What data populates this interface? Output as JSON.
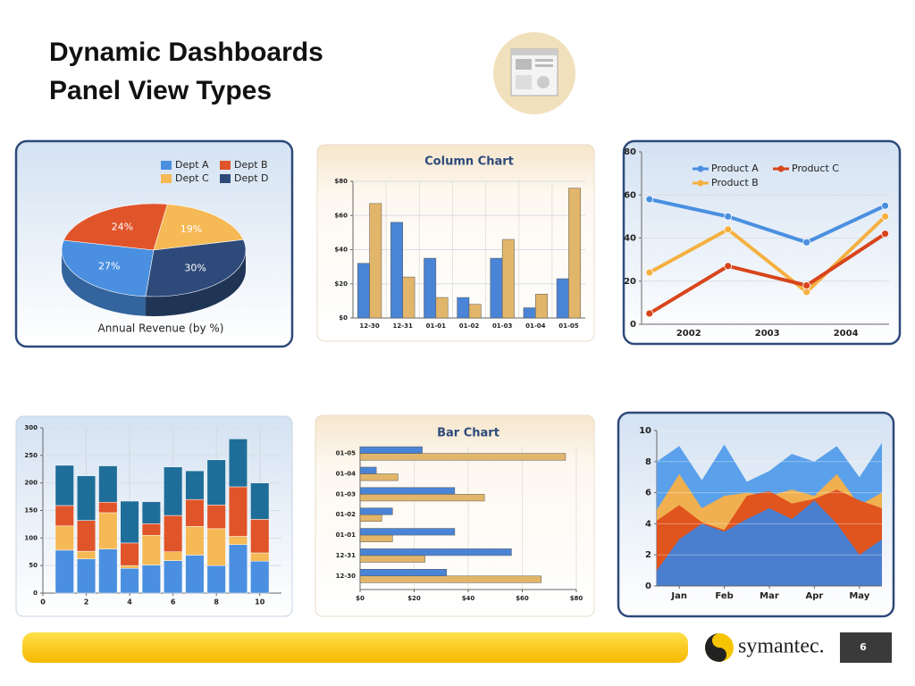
{
  "title_lines": [
    "Dynamic Dashboards",
    "Panel View Types"
  ],
  "footer": {
    "brand": "symantec.",
    "page": "6"
  },
  "chart_data": [
    {
      "type": "pie",
      "title": "Annual Revenue (by %)",
      "categories": [
        "Dept A",
        "Dept B",
        "Dept C",
        "Dept D"
      ],
      "values": [
        27,
        24,
        19,
        30
      ],
      "value_labels": [
        "27%",
        "24%",
        "19%",
        "30%"
      ],
      "colors": [
        "#4a8fe0",
        "#e0542a",
        "#f5b955",
        "#2e4a7a"
      ]
    },
    {
      "type": "bar",
      "title": "Column Chart",
      "categories": [
        "12-30",
        "12-31",
        "01-01",
        "01-02",
        "01-03",
        "01-04",
        "01-05"
      ],
      "series": [
        {
          "color": "#4a84d6",
          "values": [
            32,
            56,
            35,
            12,
            35,
            6,
            23
          ]
        },
        {
          "color": "#e2b66a",
          "values": [
            67,
            24,
            12,
            8,
            46,
            14,
            76
          ]
        }
      ],
      "ylim": [
        0,
        80
      ],
      "yticks": [
        {
          "value": 0,
          "label": "$0"
        },
        {
          "value": 20,
          "label": "$20"
        },
        {
          "value": 40,
          "label": "$40"
        },
        {
          "value": 60,
          "label": "$60"
        },
        {
          "value": 80,
          "label": "$80"
        }
      ],
      "grid": true
    },
    {
      "type": "line",
      "x": [
        2001.5,
        2002.5,
        2003.5,
        2004.5
      ],
      "series": [
        {
          "name": "Product A",
          "color": "#4a8fe0",
          "values": [
            58,
            50,
            38,
            55
          ]
        },
        {
          "name": "Product B",
          "color": "#f5b040",
          "values": [
            24,
            44,
            15,
            50
          ]
        },
        {
          "name": "Product C",
          "color": "#d8441c",
          "values": [
            5,
            27,
            18,
            42
          ]
        }
      ],
      "xlim": [
        2001.4,
        2004.55
      ],
      "xticks": [
        2002,
        2003,
        2004
      ],
      "ylim": [
        0,
        80
      ],
      "yticks": [
        0,
        20,
        40,
        60,
        80
      ],
      "grid": true
    },
    {
      "type": "stacked_bar",
      "x": [
        1,
        2,
        3,
        4,
        5,
        6,
        7,
        8,
        9,
        10
      ],
      "series": [
        {
          "color": "#4a8fe0",
          "values": [
            78,
            62,
            80,
            45,
            51,
            59,
            69,
            50,
            88,
            58
          ]
        },
        {
          "color": "#f5b955",
          "values": [
            44,
            14,
            66,
            5,
            54,
            16,
            52,
            67,
            15,
            15
          ]
        },
        {
          "color": "#e0542a",
          "values": [
            37,
            56,
            19,
            41,
            21,
            66,
            49,
            43,
            90,
            61
          ]
        },
        {
          "color": "#1f6e99",
          "values": [
            73,
            81,
            66,
            76,
            40,
            88,
            52,
            82,
            87,
            66
          ]
        }
      ],
      "xlim": [
        0,
        11
      ],
      "xticks": [
        0,
        2,
        4,
        6,
        8,
        10
      ],
      "ylim": [
        0,
        300
      ],
      "yticks": [
        0,
        50,
        100,
        150,
        200,
        250,
        300
      ],
      "grid": true
    },
    {
      "type": "hbar",
      "title": "Bar Chart",
      "categories": [
        "12-30",
        "12-31",
        "01-01",
        "01-02",
        "01-03",
        "01-04",
        "01-05"
      ],
      "series": [
        {
          "color": "#4a84d6",
          "values": [
            32,
            56,
            35,
            12,
            35,
            6,
            23
          ]
        },
        {
          "color": "#e2b66a",
          "values": [
            67,
            24,
            12,
            8,
            46,
            14,
            76
          ]
        }
      ],
      "xlim": [
        0,
        80
      ],
      "xticks": [
        {
          "value": 0,
          "label": "$0"
        },
        {
          "value": 20,
          "label": "$20"
        },
        {
          "value": 40,
          "label": "$40"
        },
        {
          "value": 60,
          "label": "$60"
        },
        {
          "value": 80,
          "label": "$80"
        }
      ],
      "grid": true
    },
    {
      "type": "area",
      "categories": [
        null,
        "Jan",
        null,
        "Feb",
        null,
        "Mar",
        null,
        "Apr",
        null,
        "May",
        null
      ],
      "series": [
        {
          "color": "#5aa0ea",
          "values": [
            8,
            9,
            6.8,
            9.1,
            6.7,
            7.4,
            8.5,
            8,
            9,
            7,
            9.2
          ]
        },
        {
          "color": "#f0b050",
          "values": [
            4.9,
            7.2,
            5,
            5.8,
            6,
            5.8,
            6.2,
            5.8,
            7.2,
            5.2,
            6
          ]
        },
        {
          "color": "#e0541e",
          "values": [
            4.2,
            5.2,
            4.1,
            3.6,
            5.8,
            6.1,
            5.3,
            5.6,
            6.2,
            5.5,
            5
          ]
        },
        {
          "color": "#4a7fd0",
          "values": [
            1,
            3,
            4,
            3.5,
            4.3,
            5,
            4.3,
            5.5,
            4,
            2,
            3
          ]
        }
      ],
      "ylim": [
        0,
        10
      ],
      "yticks": [
        0,
        2,
        4,
        6,
        8,
        10
      ],
      "grid": true
    }
  ]
}
